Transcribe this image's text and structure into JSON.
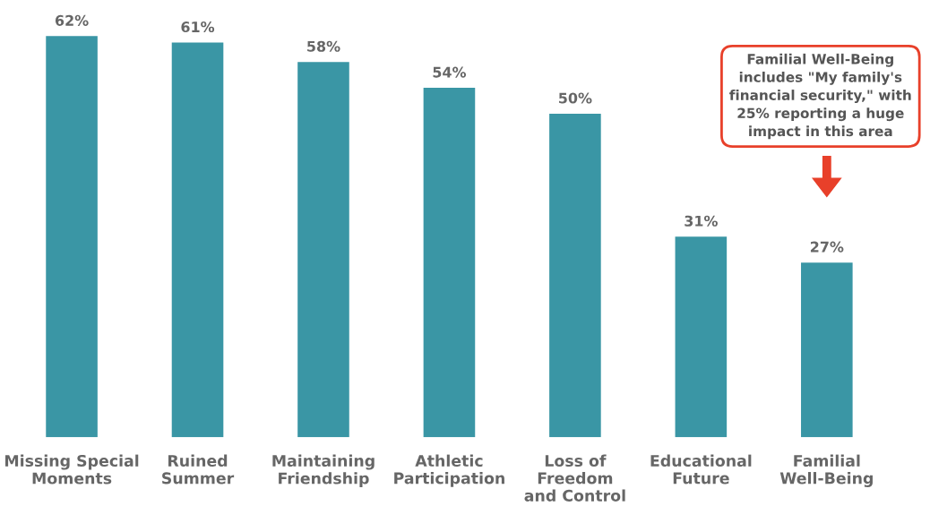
{
  "chart_data": {
    "type": "bar",
    "categories": [
      "Missing Special\nMoments",
      "Ruined\nSummer",
      "Maintaining\nFriendship",
      "Athletic\nParticipation",
      "Loss of\nFreedom\nand Control",
      "Educational\nFuture",
      "Familial\nWell-Being"
    ],
    "values": [
      62,
      61,
      58,
      54,
      50,
      31,
      27
    ],
    "color": "#3a96a5",
    "data_labels": true,
    "value_labels": [
      "62%",
      "61%",
      "58%",
      "54%",
      "50%",
      "31%",
      "27%"
    ],
    "annotations": [
      "Familial Well-Being\nincludes \"My family's\nfinancial security,\" with\n25% reporting a huge\nimpact in this area"
    ]
  }
}
